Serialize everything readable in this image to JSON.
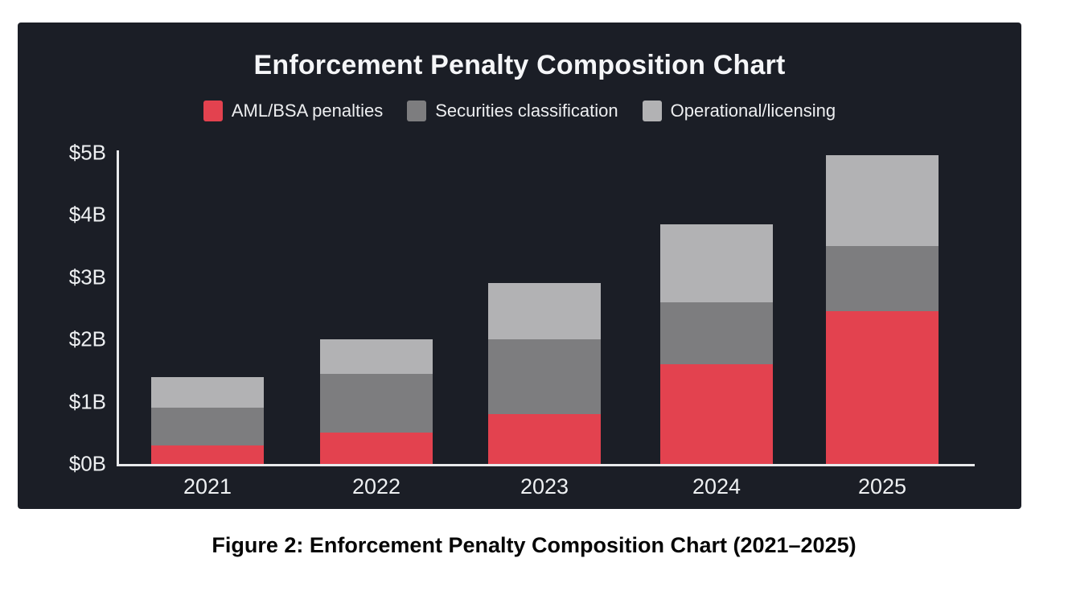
{
  "figure": {
    "caption": "Figure 2: Enforcement Penalty Composition Chart (2021–2025)"
  },
  "colors": {
    "panel_background": "#1b1e26",
    "page_background": "#ffffff",
    "axis": "#e9eaec",
    "text_light": "#eef0f2",
    "caption_text": "#060606",
    "aml_red": "#e3424f",
    "securities_gray": "#7d7d7f",
    "operational_gray": "#b2b2b4"
  },
  "chart_data": {
    "type": "bar",
    "stacked": true,
    "title": "Enforcement Penalty Composition Chart",
    "categories": [
      "2021",
      "2022",
      "2023",
      "2024",
      "2025"
    ],
    "series": [
      {
        "name": "AML/BSA penalties",
        "color": "#e3424f",
        "values": [
          0.3,
          0.5,
          0.8,
          1.6,
          2.45
        ]
      },
      {
        "name": "Securities classification",
        "color": "#7d7d7f",
        "values": [
          0.6,
          0.95,
          1.2,
          1.0,
          1.05
        ]
      },
      {
        "name": "Operational/licensing",
        "color": "#b2b2b4",
        "values": [
          0.5,
          0.55,
          0.9,
          1.25,
          1.45
        ]
      }
    ],
    "totals": [
      1.4,
      2.0,
      2.9,
      3.85,
      4.95
    ],
    "unit": "billions USD",
    "ylabel": "",
    "xlabel": "",
    "ylim": [
      0,
      5
    ],
    "y_ticks": [
      "$0B",
      "$1B",
      "$2B",
      "$3B",
      "$4B",
      "$5B"
    ],
    "grid": false,
    "legend_position": "top-center"
  }
}
